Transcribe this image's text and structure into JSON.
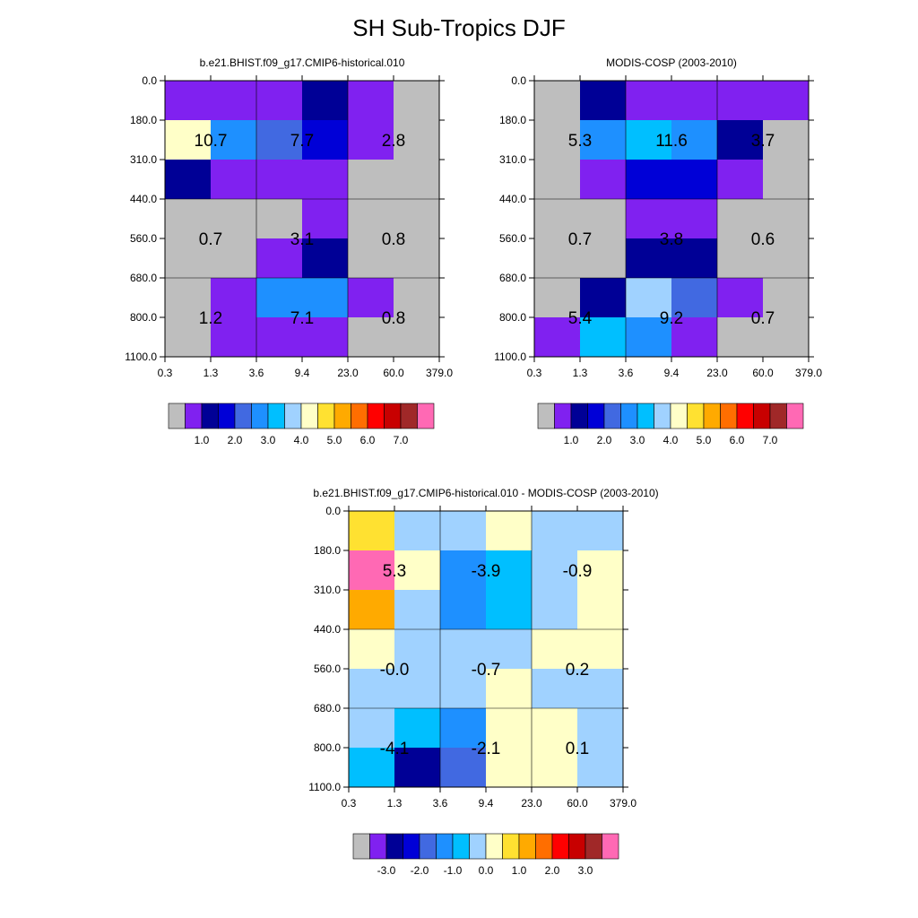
{
  "title": "SH Sub-Tropics DJF",
  "palette": {
    "gray": "#bebebe",
    "purple": "#8021f0",
    "navy": "#000096",
    "blue": "#0000d7",
    "royal": "#4169e1",
    "dodger": "#1e90ff",
    "sky": "#00bfff",
    "lightblue": "#a0d2ff",
    "cream": "#ffffc8",
    "yellow": "#ffe131",
    "gold": "#ffaa00",
    "orange": "#ff6e00",
    "red": "#ff0000",
    "crimson": "#c80000",
    "darkred": "#a02828",
    "pink": "#ff69b4"
  },
  "chart_data": [
    {
      "name": "model",
      "type": "heatmap",
      "title": "b.e21.BHIST.f09_g17.CMIP6-historical.010",
      "x_ticks": [
        "0.3",
        "1.3",
        "3.6",
        "9.4",
        "23.0",
        "60.0",
        "379.0"
      ],
      "y_ticks": [
        "0.0",
        "180.0",
        "310.0",
        "440.0",
        "560.0",
        "680.0",
        "800.0",
        "1100.0"
      ],
      "cells": [
        [
          "purple",
          "purple",
          "purple",
          "navy",
          "purple",
          "gray"
        ],
        [
          "cream",
          "dodger",
          "royal",
          "blue",
          "purple",
          "gray"
        ],
        [
          "navy",
          "purple",
          "purple",
          "purple",
          "gray",
          "gray"
        ],
        [
          "gray",
          "gray",
          "gray",
          "purple",
          "gray",
          "gray"
        ],
        [
          "gray",
          "gray",
          "purple",
          "navy",
          "gray",
          "gray"
        ],
        [
          "gray",
          "purple",
          "dodger",
          "dodger",
          "purple",
          "gray"
        ],
        [
          "gray",
          "purple",
          "purple",
          "purple",
          "gray",
          "gray"
        ]
      ],
      "box_values": [
        [
          "10.7",
          "7.7",
          "2.8"
        ],
        [
          "0.7",
          "3.1",
          "0.8"
        ],
        [
          "1.2",
          "7.1",
          "0.8"
        ]
      ],
      "colorbar_colors": [
        "gray",
        "purple",
        "navy",
        "blue",
        "royal",
        "dodger",
        "sky",
        "lightblue",
        "cream",
        "yellow",
        "gold",
        "orange",
        "red",
        "crimson",
        "darkred",
        "pink"
      ],
      "colorbar_labels": [
        "1.0",
        "2.0",
        "3.0",
        "4.0",
        "5.0",
        "6.0",
        "7.0"
      ]
    },
    {
      "name": "obs",
      "type": "heatmap",
      "title": "MODIS-COSP (2003-2010)",
      "x_ticks": [
        "0.3",
        "1.3",
        "3.6",
        "9.4",
        "23.0",
        "60.0",
        "379.0"
      ],
      "y_ticks": [
        "0.0",
        "180.0",
        "310.0",
        "440.0",
        "560.0",
        "680.0",
        "800.0",
        "1100.0"
      ],
      "cells": [
        [
          "gray",
          "navy",
          "purple",
          "purple",
          "purple",
          "purple"
        ],
        [
          "gray",
          "dodger",
          "sky",
          "dodger",
          "navy",
          "gray"
        ],
        [
          "gray",
          "purple",
          "blue",
          "blue",
          "purple",
          "gray"
        ],
        [
          "gray",
          "gray",
          "purple",
          "purple",
          "gray",
          "gray"
        ],
        [
          "gray",
          "gray",
          "navy",
          "navy",
          "gray",
          "gray"
        ],
        [
          "gray",
          "navy",
          "lightblue",
          "royal",
          "purple",
          "gray"
        ],
        [
          "purple",
          "sky",
          "dodger",
          "purple",
          "gray",
          "gray"
        ]
      ],
      "box_values": [
        [
          "5.3",
          "11.6",
          "3.7"
        ],
        [
          "0.7",
          "3.8",
          "0.6"
        ],
        [
          "5.4",
          "9.2",
          "0.7"
        ]
      ],
      "colorbar_colors": [
        "gray",
        "purple",
        "navy",
        "blue",
        "royal",
        "dodger",
        "sky",
        "lightblue",
        "cream",
        "yellow",
        "gold",
        "orange",
        "red",
        "crimson",
        "darkred",
        "pink"
      ],
      "colorbar_labels": [
        "1.0",
        "2.0",
        "3.0",
        "4.0",
        "5.0",
        "6.0",
        "7.0"
      ]
    },
    {
      "name": "diff",
      "type": "heatmap",
      "title": "b.e21.BHIST.f09_g17.CMIP6-historical.010 - MODIS-COSP (2003-2010)",
      "x_ticks": [
        "0.3",
        "1.3",
        "3.6",
        "9.4",
        "23.0",
        "60.0",
        "379.0"
      ],
      "y_ticks": [
        "0.0",
        "180.0",
        "310.0",
        "440.0",
        "560.0",
        "680.0",
        "800.0",
        "1100.0"
      ],
      "cells": [
        [
          "yellow",
          "lightblue",
          "lightblue",
          "cream",
          "lightblue",
          "lightblue"
        ],
        [
          "pink",
          "cream",
          "dodger",
          "sky",
          "lightblue",
          "cream"
        ],
        [
          "gold",
          "lightblue",
          "dodger",
          "sky",
          "lightblue",
          "cream"
        ],
        [
          "cream",
          "lightblue",
          "lightblue",
          "lightblue",
          "cream",
          "cream"
        ],
        [
          "lightblue",
          "lightblue",
          "lightblue",
          "cream",
          "lightblue",
          "lightblue"
        ],
        [
          "lightblue",
          "sky",
          "dodger",
          "cream",
          "cream",
          "lightblue"
        ],
        [
          "sky",
          "navy",
          "royal",
          "cream",
          "cream",
          "lightblue"
        ]
      ],
      "box_values": [
        [
          "5.3",
          "-3.9",
          "-0.9"
        ],
        [
          "-0.0",
          "-0.7",
          "0.2"
        ],
        [
          "-4.1",
          "-2.1",
          "0.1"
        ]
      ],
      "colorbar_colors": [
        "gray",
        "purple",
        "navy",
        "blue",
        "royal",
        "dodger",
        "sky",
        "lightblue",
        "cream",
        "yellow",
        "gold",
        "orange",
        "red",
        "crimson",
        "darkred",
        "pink"
      ],
      "colorbar_labels": [
        "-3.0",
        "-2.0",
        "-1.0",
        "0.0",
        "1.0",
        "2.0",
        "3.0"
      ]
    }
  ]
}
